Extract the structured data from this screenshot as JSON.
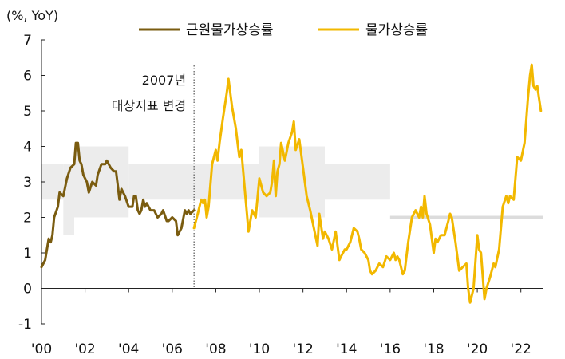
{
  "chart_data": {
    "type": "line",
    "ylabel": "(%, YoY)",
    "xlim": [
      2000,
      2023.0
    ],
    "ylim": [
      -1,
      7
    ],
    "y_ticks": [
      -1,
      0,
      1,
      2,
      3,
      4,
      5,
      6,
      7
    ],
    "x_ticks": [
      {
        "label": "'00",
        "x": 2000
      },
      {
        "label": "'02",
        "x": 2002
      },
      {
        "label": "'04",
        "x": 2004
      },
      {
        "label": "'06",
        "x": 2006
      },
      {
        "label": "'08",
        "x": 2008
      },
      {
        "label": "'10",
        "x": 2010
      },
      {
        "label": "'12",
        "x": 2012
      },
      {
        "label": "'14",
        "x": 2014
      },
      {
        "label": "'16",
        "x": 2016
      },
      {
        "label": "'18",
        "x": 2018
      },
      {
        "label": "'20",
        "x": 2020
      },
      {
        "label": "'22",
        "x": 2022
      }
    ],
    "annotation": {
      "lines": [
        "2007년",
        "대상지표 변경"
      ],
      "x": 2007.0
    },
    "target_band_color": "#ececec",
    "target_bands": [
      {
        "x0": 2000.0,
        "x1": 2001.0,
        "y0": 2.5,
        "y1": 3.5
      },
      {
        "x0": 2001.0,
        "x1": 2001.5,
        "y0": 1.5,
        "y1": 3.5
      },
      {
        "x0": 2001.5,
        "x1": 2004.0,
        "y0": 2.0,
        "y1": 4.0
      },
      {
        "x0": 2004.0,
        "x1": 2007.0,
        "y0": 2.5,
        "y1": 3.5
      },
      {
        "x0": 2007.0,
        "x1": 2010.0,
        "y0": 2.5,
        "y1": 3.5
      },
      {
        "x0": 2010.0,
        "x1": 2013.0,
        "y0": 2.0,
        "y1": 4.0
      },
      {
        "x0": 2013.0,
        "x1": 2016.0,
        "y0": 2.5,
        "y1": 3.5
      }
    ],
    "target_point": {
      "x0": 2016.0,
      "x1": 2023.0,
      "y": 2.0,
      "color": "#dcdcdc"
    },
    "series": [
      {
        "name": "근원물가상승률",
        "color": "#7a5c10",
        "points": [
          [
            2000.0,
            0.6
          ],
          [
            2000.17,
            0.8
          ],
          [
            2000.33,
            1.4
          ],
          [
            2000.42,
            1.3
          ],
          [
            2000.5,
            1.5
          ],
          [
            2000.58,
            2.0
          ],
          [
            2000.75,
            2.3
          ],
          [
            2000.83,
            2.7
          ],
          [
            2001.0,
            2.6
          ],
          [
            2001.17,
            3.1
          ],
          [
            2001.33,
            3.4
          ],
          [
            2001.5,
            3.5
          ],
          [
            2001.58,
            4.1
          ],
          [
            2001.67,
            4.1
          ],
          [
            2001.75,
            3.6
          ],
          [
            2001.83,
            3.5
          ],
          [
            2001.92,
            3.2
          ],
          [
            2002.0,
            3.1
          ],
          [
            2002.08,
            3.0
          ],
          [
            2002.17,
            2.7
          ],
          [
            2002.33,
            3.0
          ],
          [
            2002.5,
            2.9
          ],
          [
            2002.58,
            3.2
          ],
          [
            2002.75,
            3.5
          ],
          [
            2002.92,
            3.5
          ],
          [
            2003.0,
            3.6
          ],
          [
            2003.17,
            3.4
          ],
          [
            2003.33,
            3.3
          ],
          [
            2003.42,
            3.3
          ],
          [
            2003.5,
            2.9
          ],
          [
            2003.58,
            2.5
          ],
          [
            2003.67,
            2.8
          ],
          [
            2003.83,
            2.6
          ],
          [
            2004.0,
            2.3
          ],
          [
            2004.17,
            2.3
          ],
          [
            2004.25,
            2.6
          ],
          [
            2004.33,
            2.6
          ],
          [
            2004.42,
            2.2
          ],
          [
            2004.5,
            2.1
          ],
          [
            2004.58,
            2.2
          ],
          [
            2004.67,
            2.5
          ],
          [
            2004.75,
            2.3
          ],
          [
            2004.83,
            2.4
          ],
          [
            2005.0,
            2.2
          ],
          [
            2005.17,
            2.2
          ],
          [
            2005.33,
            2.0
          ],
          [
            2005.5,
            2.1
          ],
          [
            2005.58,
            2.2
          ],
          [
            2005.75,
            1.9
          ],
          [
            2005.83,
            1.9
          ],
          [
            2006.0,
            2.0
          ],
          [
            2006.17,
            1.9
          ],
          [
            2006.25,
            1.5
          ],
          [
            2006.42,
            1.7
          ],
          [
            2006.58,
            2.2
          ],
          [
            2006.67,
            2.1
          ],
          [
            2006.75,
            2.2
          ],
          [
            2006.83,
            2.1
          ],
          [
            2007.0,
            2.2
          ]
        ]
      },
      {
        "name": "물가상승률",
        "color": "#f2b800",
        "points": [
          [
            2007.0,
            1.7
          ],
          [
            2007.17,
            2.1
          ],
          [
            2007.33,
            2.5
          ],
          [
            2007.42,
            2.4
          ],
          [
            2007.5,
            2.5
          ],
          [
            2007.58,
            2.0
          ],
          [
            2007.67,
            2.3
          ],
          [
            2007.83,
            3.5
          ],
          [
            2008.0,
            3.9
          ],
          [
            2008.08,
            3.6
          ],
          [
            2008.17,
            4.1
          ],
          [
            2008.33,
            4.8
          ],
          [
            2008.5,
            5.5
          ],
          [
            2008.58,
            5.9
          ],
          [
            2008.75,
            5.1
          ],
          [
            2008.92,
            4.5
          ],
          [
            2009.0,
            4.1
          ],
          [
            2009.08,
            3.7
          ],
          [
            2009.17,
            3.9
          ],
          [
            2009.33,
            2.8
          ],
          [
            2009.5,
            1.6
          ],
          [
            2009.67,
            2.2
          ],
          [
            2009.83,
            2.0
          ],
          [
            2010.0,
            3.1
          ],
          [
            2010.17,
            2.7
          ],
          [
            2010.33,
            2.6
          ],
          [
            2010.5,
            2.7
          ],
          [
            2010.58,
            3.0
          ],
          [
            2010.67,
            3.6
          ],
          [
            2010.75,
            2.6
          ],
          [
            2010.83,
            3.3
          ],
          [
            2010.92,
            3.5
          ],
          [
            2011.0,
            4.1
          ],
          [
            2011.17,
            3.6
          ],
          [
            2011.33,
            4.1
          ],
          [
            2011.5,
            4.4
          ],
          [
            2011.58,
            4.7
          ],
          [
            2011.67,
            3.9
          ],
          [
            2011.83,
            4.2
          ],
          [
            2012.0,
            3.4
          ],
          [
            2012.17,
            2.6
          ],
          [
            2012.33,
            2.2
          ],
          [
            2012.5,
            1.7
          ],
          [
            2012.67,
            1.2
          ],
          [
            2012.75,
            2.1
          ],
          [
            2012.92,
            1.4
          ],
          [
            2013.0,
            1.6
          ],
          [
            2013.17,
            1.4
          ],
          [
            2013.33,
            1.1
          ],
          [
            2013.5,
            1.6
          ],
          [
            2013.67,
            0.8
          ],
          [
            2013.75,
            0.9
          ],
          [
            2013.92,
            1.1
          ],
          [
            2014.0,
            1.1
          ],
          [
            2014.17,
            1.3
          ],
          [
            2014.33,
            1.7
          ],
          [
            2014.5,
            1.6
          ],
          [
            2014.58,
            1.4
          ],
          [
            2014.67,
            1.1
          ],
          [
            2014.83,
            1.0
          ],
          [
            2015.0,
            0.8
          ],
          [
            2015.08,
            0.5
          ],
          [
            2015.17,
            0.4
          ],
          [
            2015.33,
            0.5
          ],
          [
            2015.5,
            0.7
          ],
          [
            2015.67,
            0.6
          ],
          [
            2015.83,
            0.9
          ],
          [
            2016.0,
            0.8
          ],
          [
            2016.17,
            1.0
          ],
          [
            2016.25,
            0.8
          ],
          [
            2016.33,
            0.9
          ],
          [
            2016.42,
            0.8
          ],
          [
            2016.58,
            0.4
          ],
          [
            2016.67,
            0.5
          ],
          [
            2016.83,
            1.3
          ],
          [
            2017.0,
            2.0
          ],
          [
            2017.17,
            2.2
          ],
          [
            2017.33,
            2.0
          ],
          [
            2017.42,
            2.3
          ],
          [
            2017.5,
            2.0
          ],
          [
            2017.58,
            2.6
          ],
          [
            2017.67,
            2.1
          ],
          [
            2017.83,
            1.8
          ],
          [
            2018.0,
            1.0
          ],
          [
            2018.08,
            1.4
          ],
          [
            2018.17,
            1.3
          ],
          [
            2018.33,
            1.5
          ],
          [
            2018.42,
            1.5
          ],
          [
            2018.5,
            1.5
          ],
          [
            2018.67,
            1.9
          ],
          [
            2018.75,
            2.1
          ],
          [
            2018.83,
            2.0
          ],
          [
            2019.0,
            1.3
          ],
          [
            2019.17,
            0.5
          ],
          [
            2019.33,
            0.6
          ],
          [
            2019.5,
            0.7
          ],
          [
            2019.58,
            -0.0
          ],
          [
            2019.67,
            -0.4
          ],
          [
            2019.83,
            0.0
          ],
          [
            2020.0,
            1.5
          ],
          [
            2020.08,
            1.1
          ],
          [
            2020.17,
            1.0
          ],
          [
            2020.33,
            -0.3
          ],
          [
            2020.42,
            -0.0
          ],
          [
            2020.58,
            0.3
          ],
          [
            2020.75,
            0.7
          ],
          [
            2020.83,
            0.6
          ],
          [
            2021.0,
            1.1
          ],
          [
            2021.17,
            2.3
          ],
          [
            2021.33,
            2.6
          ],
          [
            2021.42,
            2.4
          ],
          [
            2021.5,
            2.6
          ],
          [
            2021.67,
            2.5
          ],
          [
            2021.83,
            3.7
          ],
          [
            2022.0,
            3.6
          ],
          [
            2022.17,
            4.1
          ],
          [
            2022.33,
            5.4
          ],
          [
            2022.42,
            6.0
          ],
          [
            2022.5,
            6.3
          ],
          [
            2022.58,
            5.7
          ],
          [
            2022.67,
            5.6
          ],
          [
            2022.75,
            5.7
          ],
          [
            2022.92,
            5.0
          ]
        ]
      }
    ],
    "legend_position": "top"
  }
}
